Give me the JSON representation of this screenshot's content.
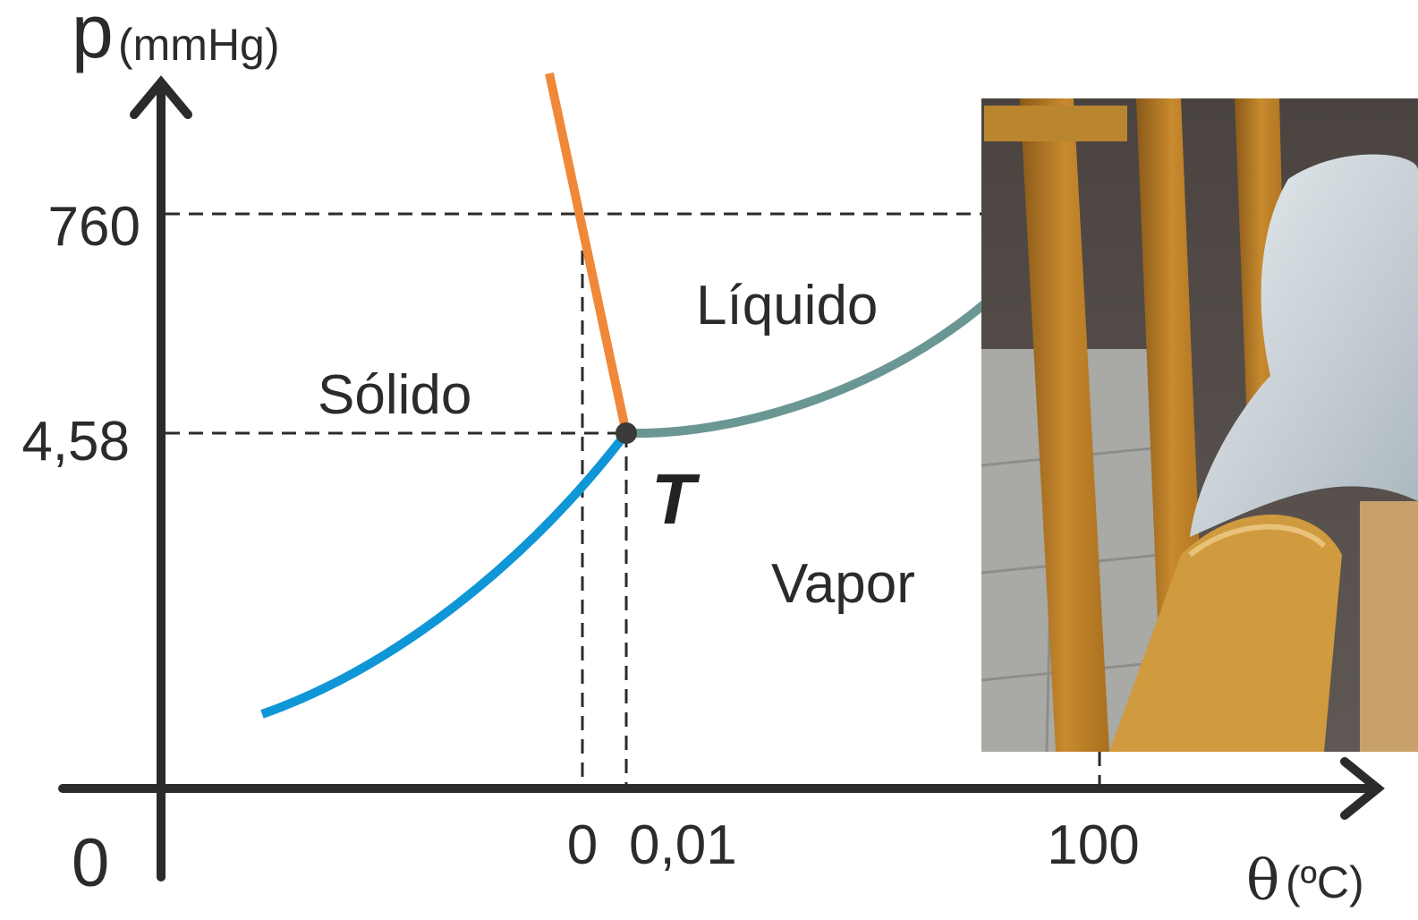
{
  "y_axis": {
    "symbol": "p",
    "unit": "(mmHg)"
  },
  "x_axis": {
    "symbol": "θ",
    "unit": "(ºC)"
  },
  "origin_label": "0",
  "y_ticks": {
    "p760": "760",
    "p458": "4,58"
  },
  "x_ticks": {
    "t0": "0",
    "t001": "0,01",
    "t100": "100"
  },
  "regions": {
    "solid": "Sólido",
    "liquid": "Líquido",
    "vapor": "Vapor"
  },
  "triple_point_label": "T",
  "colors": {
    "fusion_curve": "#f0883a",
    "vaporization_curve": "#6a9794",
    "sublimation_curve": "#0f96d6",
    "axes": "#2b2b2b",
    "triple_point": "#3a3a3a"
  }
}
